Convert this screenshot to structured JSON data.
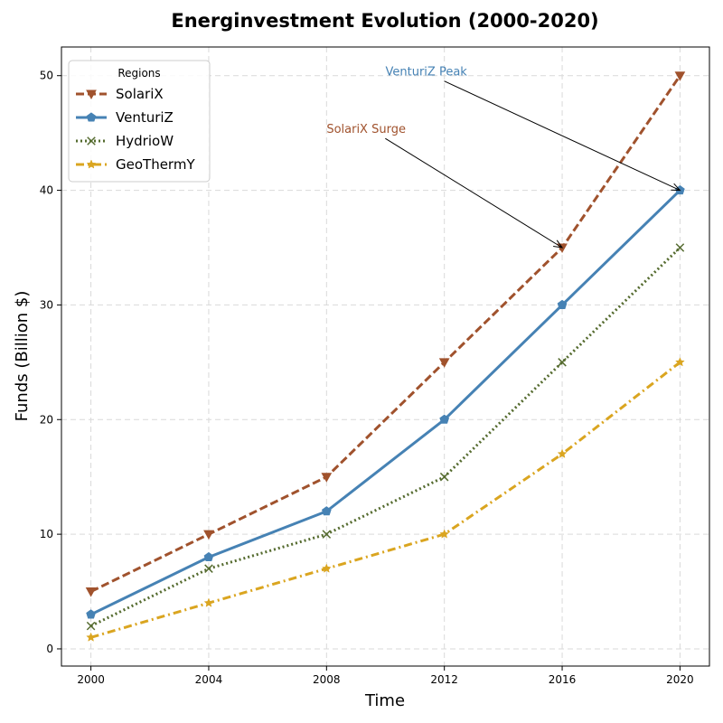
{
  "chart_data": {
    "type": "line",
    "title": "Energinvestment Evolution (2000-2020)",
    "xlabel": "Time",
    "ylabel": "Funds (Billion $)",
    "x": [
      2000,
      2004,
      2008,
      2012,
      2016,
      2020
    ],
    "x_ticks": [
      "2000",
      "2004",
      "2008",
      "2012",
      "2016",
      "2020"
    ],
    "xlim": [
      1999,
      2021
    ],
    "y_ticks": [
      "0",
      "10",
      "20",
      "30",
      "40",
      "50"
    ],
    "ylim": [
      -1.5,
      52.5
    ],
    "grid": true,
    "legend": {
      "title": "Regions",
      "position": "top-left"
    },
    "series": [
      {
        "name": "SolariX",
        "values": [
          5,
          10,
          15,
          25,
          35,
          50
        ],
        "color": "#a0522d",
        "dash": "dashed",
        "marker": "triangle-down"
      },
      {
        "name": "VenturiZ",
        "values": [
          3,
          8,
          12,
          20,
          30,
          40
        ],
        "color": "#4682b4",
        "dash": "solid",
        "marker": "pentagon"
      },
      {
        "name": "HydrioW",
        "values": [
          2,
          7,
          10,
          15,
          25,
          35
        ],
        "color": "#556b2f",
        "dash": "dotted",
        "marker": "x"
      },
      {
        "name": "GeoThermY",
        "values": [
          1,
          4,
          7,
          10,
          17,
          25
        ],
        "color": "#daa520",
        "dash": "dashdot",
        "marker": "star"
      }
    ],
    "annotations": [
      {
        "text": "SolariX Surge",
        "color": "#a0522d",
        "point": [
          2016,
          35
        ],
        "text_pos": [
          2008,
          45
        ]
      },
      {
        "text": "VenturiZ Peak",
        "color": "#4682b4",
        "point": [
          2020,
          40
        ],
        "text_pos": [
          2010,
          50
        ]
      }
    ]
  }
}
